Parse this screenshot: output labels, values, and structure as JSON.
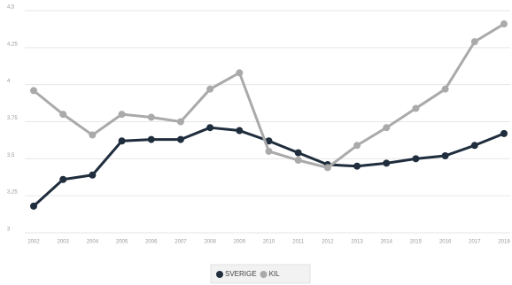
{
  "chart_data": {
    "type": "line",
    "categories": [
      "2002",
      "2003",
      "2004",
      "2005",
      "2006",
      "2007",
      "2008",
      "2009",
      "2010",
      "2011",
      "2012",
      "2013",
      "2014",
      "2015",
      "2016",
      "2017",
      "2018"
    ],
    "series": [
      {
        "name": "SVERIGE",
        "color": "#1f2d3d",
        "values": [
          3.18,
          3.36,
          3.39,
          3.62,
          3.63,
          3.63,
          3.71,
          3.69,
          3.62,
          3.54,
          3.46,
          3.45,
          3.47,
          3.5,
          3.52,
          3.59,
          3.67
        ]
      },
      {
        "name": "KIL",
        "color": "#aaaaaa",
        "values": [
          3.96,
          3.8,
          3.66,
          3.8,
          3.78,
          3.75,
          3.97,
          4.08,
          3.55,
          3.49,
          3.44,
          3.59,
          3.71,
          3.84,
          3.97,
          4.29,
          4.41
        ]
      }
    ],
    "ylim": [
      3,
      4.5
    ],
    "yticks": [
      {
        "value": 3,
        "label": "3"
      },
      {
        "value": 3.25,
        "label": "3,25"
      },
      {
        "value": 3.5,
        "label": "3,5"
      },
      {
        "value": 3.75,
        "label": "3,75"
      },
      {
        "value": 4,
        "label": "4"
      },
      {
        "value": 4.25,
        "label": "4,25"
      },
      {
        "value": 4.5,
        "label": "4,5"
      }
    ],
    "grid": true,
    "legend": "bottom"
  }
}
